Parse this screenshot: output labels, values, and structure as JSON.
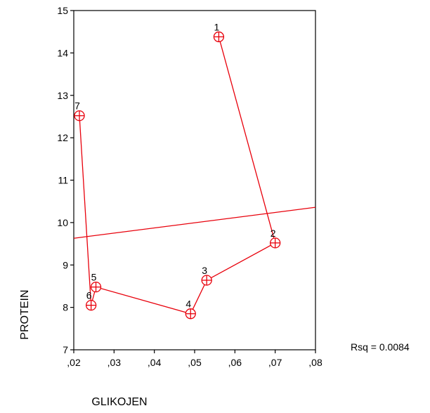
{
  "chart_data": {
    "type": "scatter",
    "xlabel": "GLIKOJEN",
    "ylabel": "PROTEIN",
    "xlim": [
      0.02,
      0.08
    ],
    "ylim": [
      7,
      15
    ],
    "xticks": [
      0.02,
      0.03,
      0.04,
      0.05,
      0.06,
      0.07,
      0.08
    ],
    "xtick_labels": [
      ",02",
      ",03",
      ",04",
      ",05",
      ",06",
      ",07",
      ",08"
    ],
    "yticks": [
      7,
      8,
      9,
      10,
      11,
      12,
      13,
      14,
      15
    ],
    "ytick_labels": [
      "7",
      "8",
      "9",
      "10",
      "11",
      "12",
      "13",
      "14",
      "15"
    ],
    "points": [
      {
        "label": "1",
        "x": 0.056,
        "y": 14.38
      },
      {
        "label": "2",
        "x": 0.07,
        "y": 9.52
      },
      {
        "label": "3",
        "x": 0.053,
        "y": 8.64
      },
      {
        "label": "4",
        "x": 0.049,
        "y": 7.85
      },
      {
        "label": "5",
        "x": 0.0255,
        "y": 8.48
      },
      {
        "label": "6",
        "x": 0.0243,
        "y": 8.05
      },
      {
        "label": "7",
        "x": 0.0214,
        "y": 12.52
      }
    ],
    "connect_order": [
      "1",
      "2",
      "3",
      "4",
      "5",
      "6",
      "7"
    ],
    "fit_line": {
      "x": [
        0.02,
        0.08
      ],
      "y": [
        9.63,
        10.36
      ]
    },
    "annotation": "Rsq = 0.0084",
    "grid": false,
    "colors": {
      "series": "#e8000b",
      "axes": "#000000"
    }
  }
}
